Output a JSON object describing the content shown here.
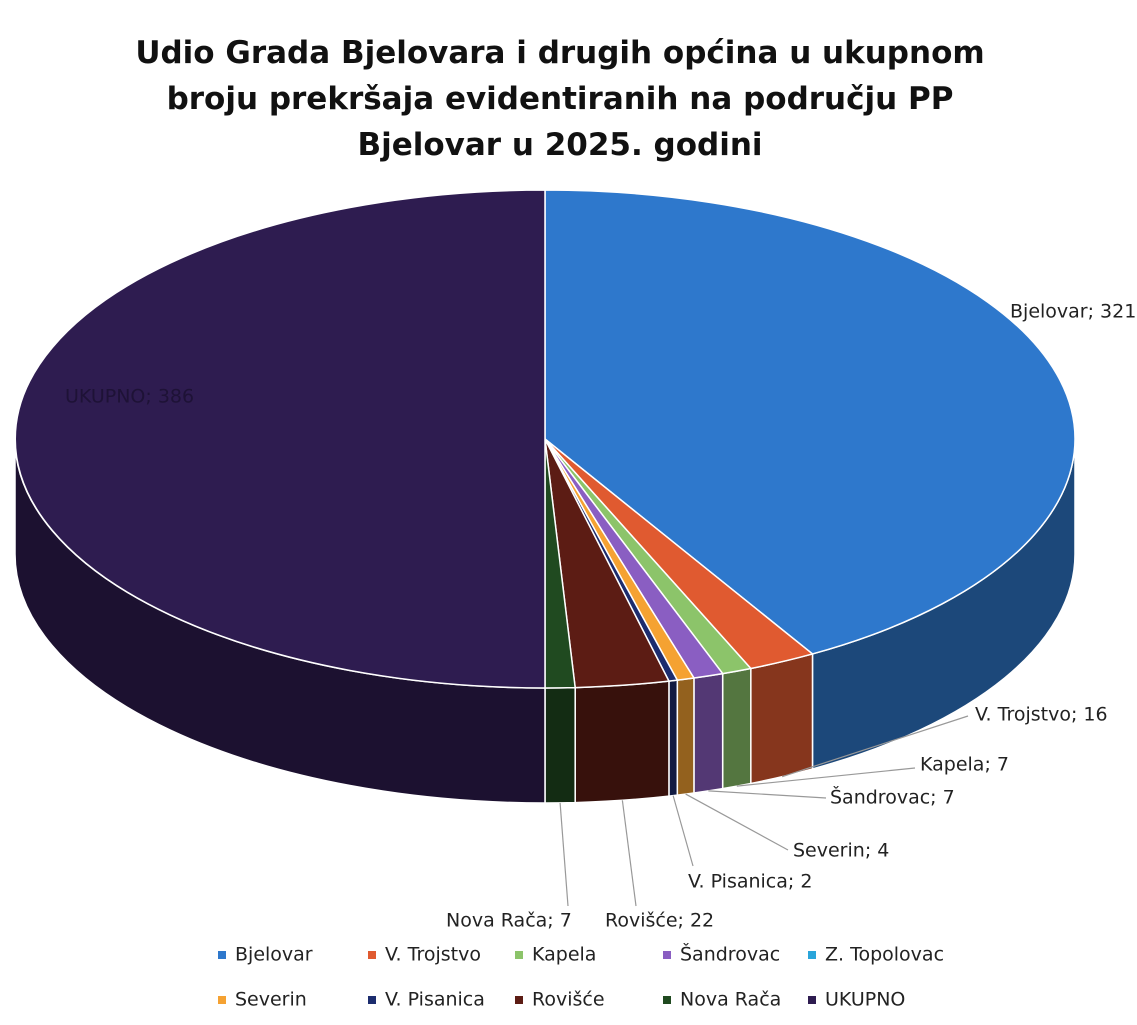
{
  "chart_data": {
    "type": "pie3d",
    "title": "Udio Grada Bjelovara i drugih općina u ukupnom broju prekršaja evidentiranih na području PP Bjelovar u 2025. godini",
    "categories": [
      "Bjelovar",
      "V. Trojstvo",
      "Kapela",
      "Šandrovac",
      "Z. Topolovac",
      "Severin",
      "V. Pisanica",
      "Rovišće",
      "Nova Rača",
      "UKUPNO"
    ],
    "values": [
      321,
      16,
      7,
      7,
      0,
      4,
      2,
      22,
      7,
      386
    ],
    "value_labels": [
      "Bjelovar; 321",
      "V. Trojstvo; 16",
      "Kapela; 7",
      "Šandrovac; 7",
      null,
      "Severin; 4",
      "V. Pisanica; 2",
      "Rovišće; 22",
      "Nova Rača; 7",
      "UKUPNO; 386"
    ],
    "colors": [
      "#2e78cc",
      "#e05a30",
      "#8cc46a",
      "#8a5ec2",
      "#2aa5da",
      "#f5a232",
      "#1c2c6e",
      "#5c1c14",
      "#204a20",
      "#2e1c50"
    ],
    "legend": "bottom"
  }
}
